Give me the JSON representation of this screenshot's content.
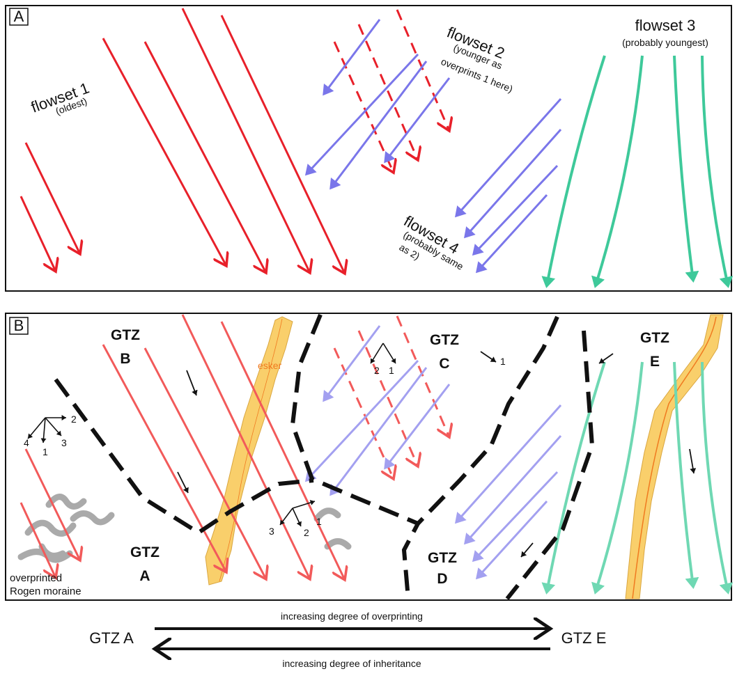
{
  "panel_a": {
    "label": "A",
    "flowset1": {
      "title": "flowset 1",
      "note": "(oldest)"
    },
    "flowset2": {
      "title": "flowset 2",
      "note_lines": [
        "(younger as",
        "overprints 1 here)"
      ]
    },
    "flowset3": {
      "title": "flowset 3",
      "note": "(probably youngest)"
    },
    "flowset4": {
      "title": "flowset 4",
      "note_lines": [
        "(probably same",
        "as 2)"
      ]
    }
  },
  "panel_b": {
    "label": "B",
    "zones": [
      {
        "name": "GTZ",
        "letter": "A"
      },
      {
        "name": "GTZ",
        "letter": "B"
      },
      {
        "name": "GTZ",
        "letter": "C"
      },
      {
        "name": "GTZ",
        "letter": "D"
      },
      {
        "name": "GTZ",
        "letter": "E"
      }
    ],
    "esker": "esker",
    "moraine_lines": [
      "overprinted",
      "Rogen moraine"
    ],
    "arrow_numbers": {
      "left": [
        "2",
        "4",
        "1",
        "3"
      ],
      "c": [
        "2",
        "1"
      ],
      "c_single": "1",
      "center": [
        "1",
        "3",
        "2"
      ]
    }
  },
  "bottom": {
    "left": "GTZ A",
    "right": "GTZ E",
    "top_arrow": "increasing degree of overprinting",
    "bottom_arrow": "increasing degree of inheritance"
  }
}
